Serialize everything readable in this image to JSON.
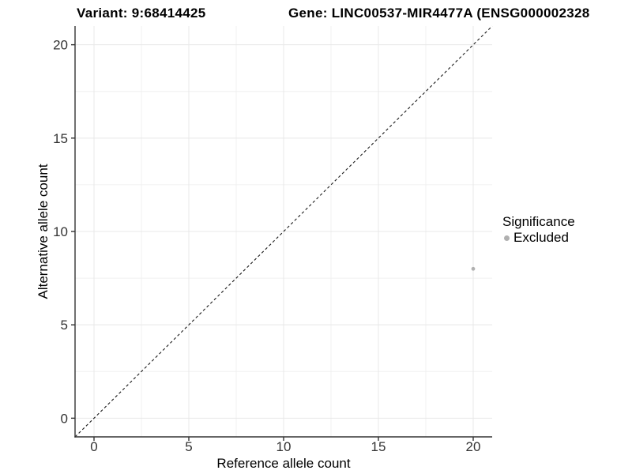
{
  "title": {
    "variant": "Variant: 9:68414425",
    "gene": "Gene: LINC00537-MIR4477A (ENSG000002328"
  },
  "axes": {
    "x_label": "Reference allele count",
    "y_label": "Alternative allele count",
    "tick_labels": [
      "0",
      "5",
      "10",
      "15",
      "20"
    ]
  },
  "legend": {
    "title": "Significance",
    "items": [
      {
        "label": "Excluded",
        "color": "#b0b0b0"
      }
    ]
  },
  "colors": {
    "grid_major": "#e8e8e8",
    "grid_minor": "#f0f0f0",
    "axis": "#333333",
    "tick_text": "#333333",
    "dashed_line": "#1a1a1a",
    "point": "#b0b0b0",
    "background": "#ffffff"
  },
  "chart_data": {
    "type": "scatter",
    "title": "Variant: 9:68414425   Gene: LINC00537-MIR4477A (ENSG000002328",
    "xlabel": "Reference allele count",
    "ylabel": "Alternative allele count",
    "xlim": [
      -1,
      21
    ],
    "ylim": [
      -1,
      21
    ],
    "major_ticks": [
      0,
      5,
      10,
      15,
      20
    ],
    "minor_ticks": [
      2.5,
      7.5,
      12.5,
      17.5
    ],
    "grid": true,
    "points": [
      {
        "x": 20,
        "y": 8,
        "series": "Excluded",
        "color": "#b0b0b0"
      }
    ],
    "reference_line": {
      "kind": "identity",
      "x1": -1,
      "y1": -1,
      "x2": 21,
      "y2": 21,
      "style": "dashed"
    },
    "legend": {
      "title": "Significance",
      "position": "right",
      "entries": [
        "Excluded"
      ]
    }
  }
}
